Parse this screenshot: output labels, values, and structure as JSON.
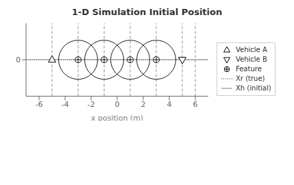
{
  "chart_data": {
    "type": "scatter",
    "title": "1-D Simulation Initial Position",
    "x_label": "x position (m)",
    "xlim": [
      -7,
      7
    ],
    "ylim": [
      -2.8,
      2.8
    ],
    "xticks": [
      -6,
      -4,
      -2,
      0,
      2,
      4,
      6
    ],
    "yticks": [
      0
    ],
    "grid": false,
    "legend": "lower right",
    "vertical_lines": {
      "x": [
        -5,
        -3,
        -1,
        1,
        3,
        5,
        6
      ],
      "color": "#888888",
      "line_style": "dashed"
    },
    "series": [
      {
        "name": "Vehicle A",
        "type": "scatter",
        "marker": "triangle-up",
        "color": "black",
        "x": [
          -5
        ],
        "y": [
          0
        ]
      },
      {
        "name": "Vehicle B",
        "type": "scatter",
        "marker": "triangle-down",
        "color": "black",
        "x": [
          5
        ],
        "y": [
          0
        ]
      },
      {
        "name": "Feature",
        "type": "scatter",
        "marker": "circle-cross",
        "color": "black",
        "x": [
          -3,
          -1,
          1,
          3
        ],
        "y": [
          0,
          0,
          0,
          0
        ],
        "circle_radius": 1.5
      },
      {
        "name": "Xr (true)",
        "type": "hline",
        "y": 0,
        "color": "#666666",
        "line_style": "dotted"
      },
      {
        "name": "Xh (initial)",
        "type": "hline",
        "y": 0,
        "color": "#aaaaaa",
        "line_style": "solid"
      }
    ]
  }
}
